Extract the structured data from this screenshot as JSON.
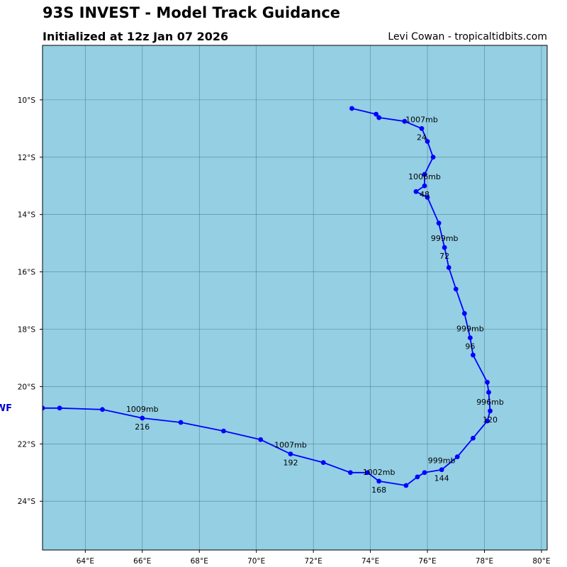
{
  "header": {
    "title": "93S INVEST - Model Track Guidance",
    "subtitle": "Initialized at 12z Jan 07 2026",
    "credit": "Levi Cowan - tropicaltidbits.com"
  },
  "colors": {
    "ocean": "#94cfe4",
    "track": "#0000ff",
    "grid": "#2a4a55",
    "model_label": "#0000cc"
  },
  "chart_data": {
    "type": "map-track",
    "projection": "lat-lon",
    "lon_range": [
      62.5,
      80.2
    ],
    "lat_range": [
      -25.7,
      -8.1
    ],
    "x_ticks": [
      64,
      66,
      68,
      70,
      72,
      74,
      76,
      78,
      80
    ],
    "y_ticks": [
      -10,
      -12,
      -14,
      -16,
      -18,
      -20,
      -22,
      -24
    ],
    "x_tick_labels": [
      "64°E",
      "66°E",
      "68°E",
      "70°E",
      "72°E",
      "74°E",
      "76°E",
      "78°E",
      "80°E"
    ],
    "y_tick_labels": [
      "10°S",
      "12°S",
      "14°S",
      "16°S",
      "18°S",
      "20°S",
      "22°S",
      "24°S"
    ],
    "model_label": "WF",
    "track": [
      {
        "lon": 73.35,
        "lat": -10.3
      },
      {
        "lon": 74.2,
        "lat": -10.5
      },
      {
        "lon": 74.3,
        "lat": -10.62
      },
      {
        "lon": 75.2,
        "lat": -10.75
      },
      {
        "lon": 75.8,
        "lat": -11.0
      },
      {
        "lon": 76.0,
        "lat": -11.45
      },
      {
        "lon": 76.2,
        "lat": -12.0
      },
      {
        "lon": 75.9,
        "lat": -12.6
      },
      {
        "lon": 75.9,
        "lat": -13.0
      },
      {
        "lon": 75.6,
        "lat": -13.2
      },
      {
        "lon": 76.0,
        "lat": -13.4
      },
      {
        "lon": 76.4,
        "lat": -14.3
      },
      {
        "lon": 76.6,
        "lat": -15.15
      },
      {
        "lon": 76.75,
        "lat": -15.85
      },
      {
        "lon": 77.0,
        "lat": -16.6
      },
      {
        "lon": 77.3,
        "lat": -17.45
      },
      {
        "lon": 77.5,
        "lat": -18.3
      },
      {
        "lon": 77.6,
        "lat": -18.9
      },
      {
        "lon": 78.1,
        "lat": -19.85
      },
      {
        "lon": 78.15,
        "lat": -20.2
      },
      {
        "lon": 78.2,
        "lat": -20.85
      },
      {
        "lon": 78.1,
        "lat": -21.2
      },
      {
        "lon": 77.6,
        "lat": -21.8
      },
      {
        "lon": 77.05,
        "lat": -22.45
      },
      {
        "lon": 76.5,
        "lat": -22.9
      },
      {
        "lon": 75.9,
        "lat": -23.0
      },
      {
        "lon": 75.65,
        "lat": -23.15
      },
      {
        "lon": 75.25,
        "lat": -23.45
      },
      {
        "lon": 74.3,
        "lat": -23.3
      },
      {
        "lon": 73.9,
        "lat": -23.0
      },
      {
        "lon": 73.3,
        "lat": -23.0
      },
      {
        "lon": 72.35,
        "lat": -22.65
      },
      {
        "lon": 71.2,
        "lat": -22.35
      },
      {
        "lon": 70.15,
        "lat": -21.85
      },
      {
        "lon": 68.85,
        "lat": -21.55
      },
      {
        "lon": 67.35,
        "lat": -21.25
      },
      {
        "lon": 66.0,
        "lat": -21.1
      },
      {
        "lon": 64.6,
        "lat": -20.8
      },
      {
        "lon": 63.1,
        "lat": -20.75
      },
      {
        "lon": 62.5,
        "lat": -20.75
      }
    ],
    "annotations": [
      {
        "pressure": "1007mb",
        "hour": "24",
        "lon": 75.8,
        "lat": -11.0
      },
      {
        "pressure": "1006mb",
        "hour": "48",
        "lon": 75.9,
        "lat": -13.0
      },
      {
        "pressure": "999mb",
        "hour": "72",
        "lon": 76.6,
        "lat": -15.15
      },
      {
        "pressure": "999mb",
        "hour": "96",
        "lon": 77.5,
        "lat": -18.3
      },
      {
        "pressure": "996mb",
        "hour": "120",
        "lon": 78.2,
        "lat": -20.85
      },
      {
        "pressure": "999mb",
        "hour": "144",
        "lon": 76.5,
        "lat": -22.9
      },
      {
        "pressure": "1002mb",
        "hour": "168",
        "lon": 74.3,
        "lat": -23.3
      },
      {
        "pressure": "1007mb",
        "hour": "192",
        "lon": 71.2,
        "lat": -22.35
      },
      {
        "pressure": "1009mb",
        "hour": "216",
        "lon": 66.0,
        "lat": -21.1
      }
    ]
  }
}
